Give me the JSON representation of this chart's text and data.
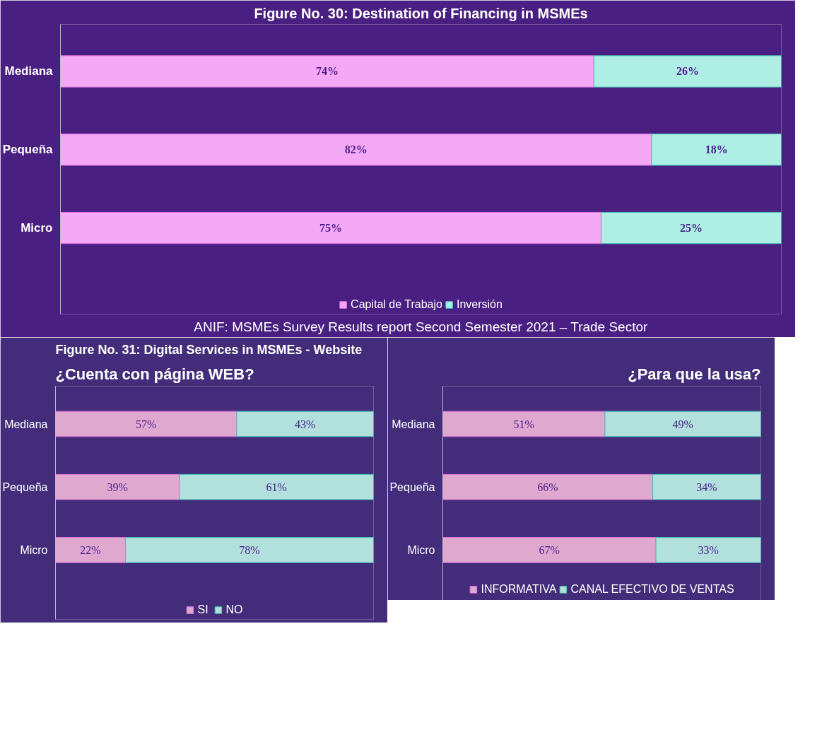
{
  "chart_data": [
    {
      "type": "bar",
      "title": "Figure No. 30: Destination of Financing in MSMEs",
      "orientation": "horizontal",
      "stacked": true,
      "data_labels": true,
      "legend": "bottom",
      "categories": [
        "Mediana",
        "Pequeña",
        "Micro"
      ],
      "series": [
        {
          "name": "Capital de Trabajo",
          "color": "#f5a8f5",
          "values": [
            74,
            82,
            75
          ],
          "value_labels": [
            "74%",
            "82%",
            "75%"
          ]
        },
        {
          "name": "Inversión",
          "color": "#aeeee4",
          "values": [
            26,
            18,
            25
          ],
          "value_labels": [
            "26%",
            "18%",
            "25%"
          ]
        }
      ],
      "annotations": [
        "ANIF: MSMEs Survey Results report Second Semester 2021 – Trade Sector"
      ]
    },
    {
      "type": "bar",
      "title": "Figure No. 31: Digital Services in MSMEs - Website",
      "subtitle": "¿Cuenta con página WEB?",
      "orientation": "horizontal",
      "stacked": true,
      "data_labels": true,
      "legend": "bottom",
      "categories": [
        "Mediana",
        "Pequeña",
        "Micro"
      ],
      "series": [
        {
          "name": "SI",
          "color": "#dfa9cf",
          "values": [
            57,
            39,
            22
          ],
          "value_labels": [
            "57%",
            "39%",
            "22%"
          ]
        },
        {
          "name": "NO",
          "color": "#b2e0dc",
          "values": [
            43,
            61,
            78
          ],
          "value_labels": [
            "43%",
            "61%",
            "78%"
          ]
        }
      ]
    },
    {
      "type": "bar",
      "subtitle": "¿Para que la usa?",
      "orientation": "horizontal",
      "stacked": true,
      "data_labels": true,
      "legend": "bottom",
      "categories": [
        "Mediana",
        "Pequeña",
        "Micro"
      ],
      "series": [
        {
          "name": "INFORMATIVA",
          "color": "#dfa9cf",
          "values": [
            51,
            66,
            67
          ],
          "value_labels": [
            "51%",
            "66%",
            "67%"
          ]
        },
        {
          "name": "CANAL EFECTIVO DE VENTAS",
          "color": "#b2e0dc",
          "values": [
            49,
            34,
            33
          ],
          "value_labels": [
            "49%",
            "34%",
            "33%"
          ]
        }
      ]
    }
  ]
}
